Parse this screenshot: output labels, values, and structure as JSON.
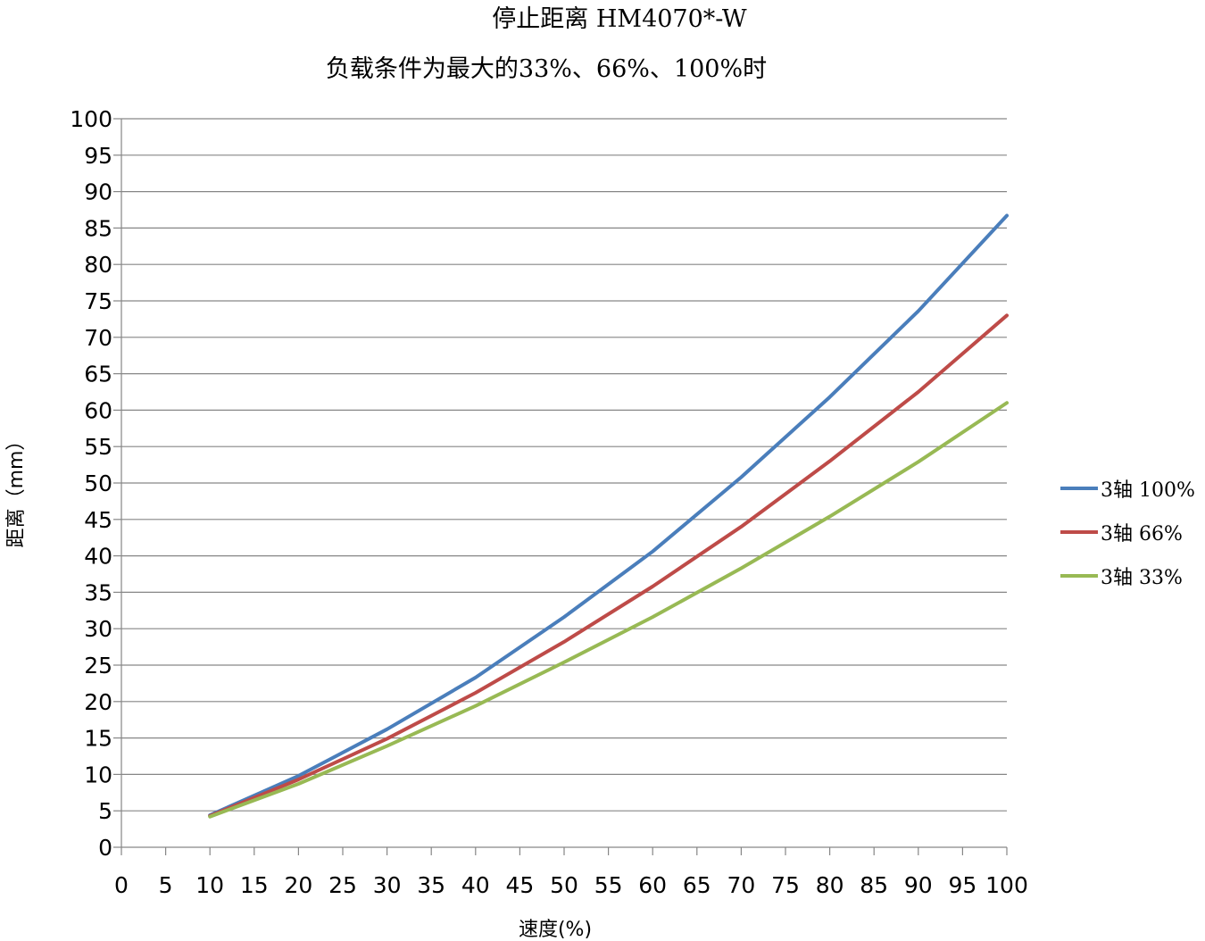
{
  "chart_data": {
    "type": "line",
    "title": "停止距离 HM4070*-W",
    "subtitle": "负载条件为最大的33%、66%、100%时",
    "xlabel": "速度(%)",
    "ylabel": "距离（mm）",
    "xlim": [
      0,
      100
    ],
    "ylim": [
      0,
      100
    ],
    "x_ticks": [
      0,
      5,
      10,
      15,
      20,
      25,
      30,
      35,
      40,
      45,
      50,
      55,
      60,
      65,
      70,
      75,
      80,
      85,
      90,
      95,
      100
    ],
    "y_ticks": [
      0,
      5,
      10,
      15,
      20,
      25,
      30,
      35,
      40,
      45,
      50,
      55,
      60,
      65,
      70,
      75,
      80,
      85,
      90,
      95,
      100
    ],
    "grid": {
      "horizontal": true,
      "vertical": false
    },
    "legend_position": "right",
    "x": [
      10,
      20,
      30,
      40,
      50,
      60,
      70,
      80,
      90,
      100
    ],
    "series": [
      {
        "name": "3轴 100%",
        "color": "#4a7ebb",
        "values": [
          4.4,
          9.8,
          16.2,
          23.3,
          31.6,
          40.6,
          50.8,
          61.8,
          73.6,
          86.7
        ]
      },
      {
        "name": "3轴 66%",
        "color": "#be4b48",
        "values": [
          4.3,
          9.3,
          14.9,
          21.2,
          28.2,
          35.8,
          44.0,
          53.0,
          62.5,
          73.0
        ]
      },
      {
        "name": "3轴 33%",
        "color": "#98b954",
        "values": [
          4.2,
          8.7,
          13.9,
          19.4,
          25.4,
          31.6,
          38.3,
          45.4,
          52.9,
          61.0
        ]
      }
    ]
  }
}
